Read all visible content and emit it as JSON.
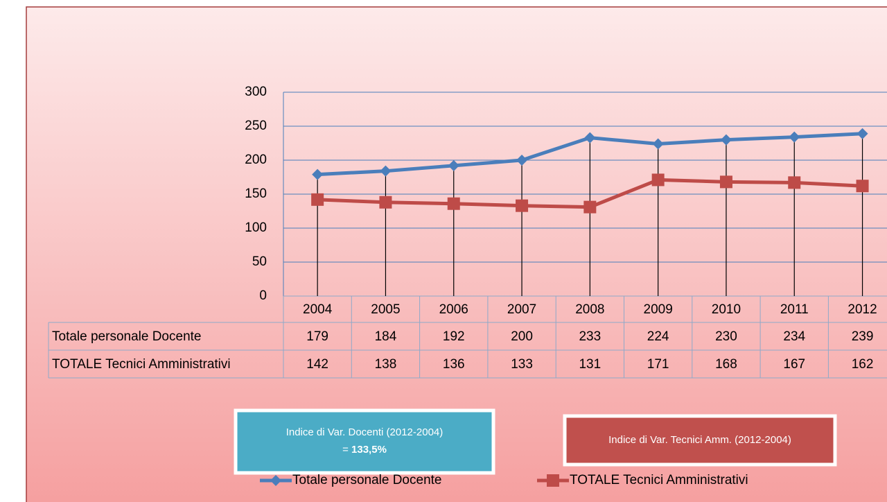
{
  "chart_data": {
    "type": "line",
    "categories": [
      "2004",
      "2005",
      "2006",
      "2007",
      "2008",
      "2009",
      "2010",
      "2011",
      "2012"
    ],
    "series": [
      {
        "name": "Totale personale Docente",
        "color": "#4a7ebb",
        "marker": "diamond",
        "values": [
          179,
          184,
          192,
          200,
          233,
          224,
          230,
          234,
          239
        ]
      },
      {
        "name": "TOTALE Tecnici Amministrativi",
        "color": "#be4b48",
        "marker": "square",
        "values": [
          142,
          138,
          136,
          133,
          131,
          171,
          168,
          167,
          162
        ]
      }
    ],
    "ylim": [
      0,
      300
    ],
    "yticks": [
      0,
      50,
      100,
      150,
      200,
      250,
      300
    ],
    "grid": true,
    "drop_lines": true,
    "data_table": true,
    "annotations": [
      {
        "text": "Indice di Var.  Docenti (2012-2004)",
        "sign": "=",
        "result": "133,5%",
        "color": "#4bacc6"
      },
      {
        "text": "Indice di Var. Tecnici Amm. (2012-2004)",
        "color": "#c0504d"
      }
    ],
    "legend": "bottom"
  }
}
